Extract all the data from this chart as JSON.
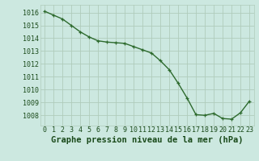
{
  "x": [
    0,
    1,
    2,
    3,
    4,
    5,
    6,
    7,
    8,
    9,
    10,
    11,
    12,
    13,
    14,
    15,
    16,
    17,
    18,
    19,
    20,
    21,
    22,
    23
  ],
  "y": [
    1016.1,
    1015.8,
    1015.5,
    1015.0,
    1014.5,
    1014.1,
    1013.8,
    1013.7,
    1013.65,
    1013.6,
    1013.35,
    1013.1,
    1012.85,
    1012.25,
    1011.55,
    1010.5,
    1009.35,
    1008.05,
    1008.0,
    1008.15,
    1007.75,
    1007.7,
    1008.2,
    1009.1
  ],
  "line_color": "#2d6a2d",
  "marker": "+",
  "marker_size": 3.5,
  "line_width": 1.0,
  "bg_color": "#cce8e0",
  "grid_color": "#b0ccbb",
  "ylabel_ticks": [
    1008,
    1009,
    1010,
    1011,
    1012,
    1013,
    1014,
    1015,
    1016
  ],
  "xlabel": "Graphe pression niveau de la mer (hPa)",
  "xlabel_fontsize": 7.5,
  "tick_fontsize": 6.0,
  "xlim": [
    -0.5,
    23.5
  ],
  "ylim": [
    1007.2,
    1016.6
  ],
  "text_color": "#1a4a1a"
}
